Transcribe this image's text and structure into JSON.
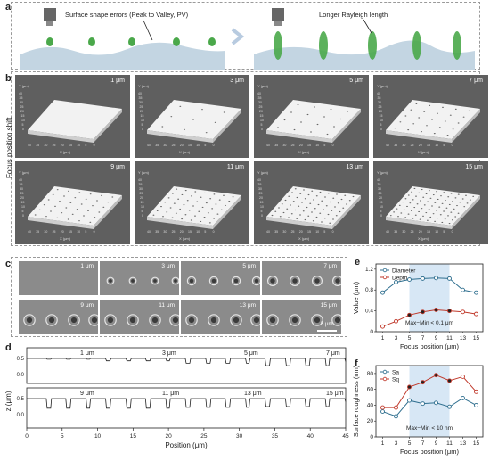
{
  "panels": {
    "a": "a",
    "b": "b",
    "c": "c",
    "d": "d",
    "e": "e",
    "f": "f"
  },
  "a": {
    "label_left": "Surface shape errors (Peak to Valley, PV)",
    "label_right": "Longer Rayleigh length"
  },
  "b": {
    "side_label": "Focus position shift",
    "tiles": [
      "1 μm",
      "3 μm",
      "5 μm",
      "7 μm",
      "9 μm",
      "11 μm",
      "13 μm",
      "15 μm"
    ],
    "axis_y": "Y (μm)",
    "axis_x": "X (μm)",
    "x_ticks": [
      "40",
      "35",
      "30",
      "25",
      "20",
      "15",
      "10",
      "5",
      "0"
    ],
    "y_ticks": [
      "40",
      "35",
      "30",
      "25",
      "20",
      "15",
      "10",
      "5",
      "0"
    ]
  },
  "c": {
    "tiles": [
      "1 μm",
      "3 μm",
      "5 μm",
      "7 μm",
      "9 μm",
      "11 μm",
      "13 μm",
      "15 μm"
    ],
    "scalebar": "5 μm"
  },
  "d": {
    "ylabel": "z (μm)",
    "xlabel": "Position (μm)",
    "x_ticks": [
      "0",
      "5",
      "10",
      "15",
      "20",
      "25",
      "30",
      "35",
      "40",
      "45"
    ],
    "y_ticks": [
      "0.5",
      "0.0"
    ],
    "row1_labels": [
      "1 μm",
      "3 μm",
      "5 μm",
      "7 μm"
    ],
    "row2_labels": [
      "9 μm",
      "11 μm",
      "13 μm",
      "15 μm"
    ]
  },
  "chart_data": [
    {
      "type": "line",
      "panel": "e",
      "x": [
        1,
        3,
        5,
        7,
        9,
        11,
        13,
        15
      ],
      "series": [
        {
          "name": "Diameter",
          "values": [
            0.75,
            0.95,
            1.0,
            1.02,
            1.03,
            1.02,
            0.8,
            0.75
          ],
          "color": "#2f6f8f"
        },
        {
          "name": "Depth",
          "values": [
            0.1,
            0.2,
            0.32,
            0.38,
            0.42,
            0.4,
            0.38,
            0.34
          ],
          "color": "#c0392b"
        }
      ],
      "xlabel": "Focus position (μm)",
      "ylabel": "Value (μm)",
      "xticks": [
        1,
        3,
        5,
        7,
        9,
        11,
        13,
        15
      ],
      "yticks": [
        0.0,
        0.4,
        0.8,
        1.2
      ],
      "ylim": [
        0,
        1.3
      ],
      "annotation": "Max−Min < 0.1 μm",
      "legend": "top-left"
    },
    {
      "type": "line",
      "panel": "f",
      "x": [
        1,
        3,
        5,
        7,
        9,
        11,
        13,
        15
      ],
      "series": [
        {
          "name": "Sa",
          "values": [
            32,
            26,
            46,
            42,
            43,
            38,
            49,
            40
          ],
          "color": "#2f6f8f"
        },
        {
          "name": "Sq",
          "values": [
            37,
            37,
            63,
            69,
            78,
            71,
            76,
            57
          ],
          "color": "#c0392b"
        }
      ],
      "xlabel": "Focus position (μm)",
      "ylabel": "Surface roughness (nm)",
      "xticks": [
        1,
        3,
        5,
        7,
        9,
        11,
        13,
        15
      ],
      "yticks": [
        0,
        20,
        40,
        60,
        80
      ],
      "ylim": [
        0,
        90
      ],
      "annotation": "Max−Min < 10 nm",
      "legend": "top-left"
    }
  ]
}
